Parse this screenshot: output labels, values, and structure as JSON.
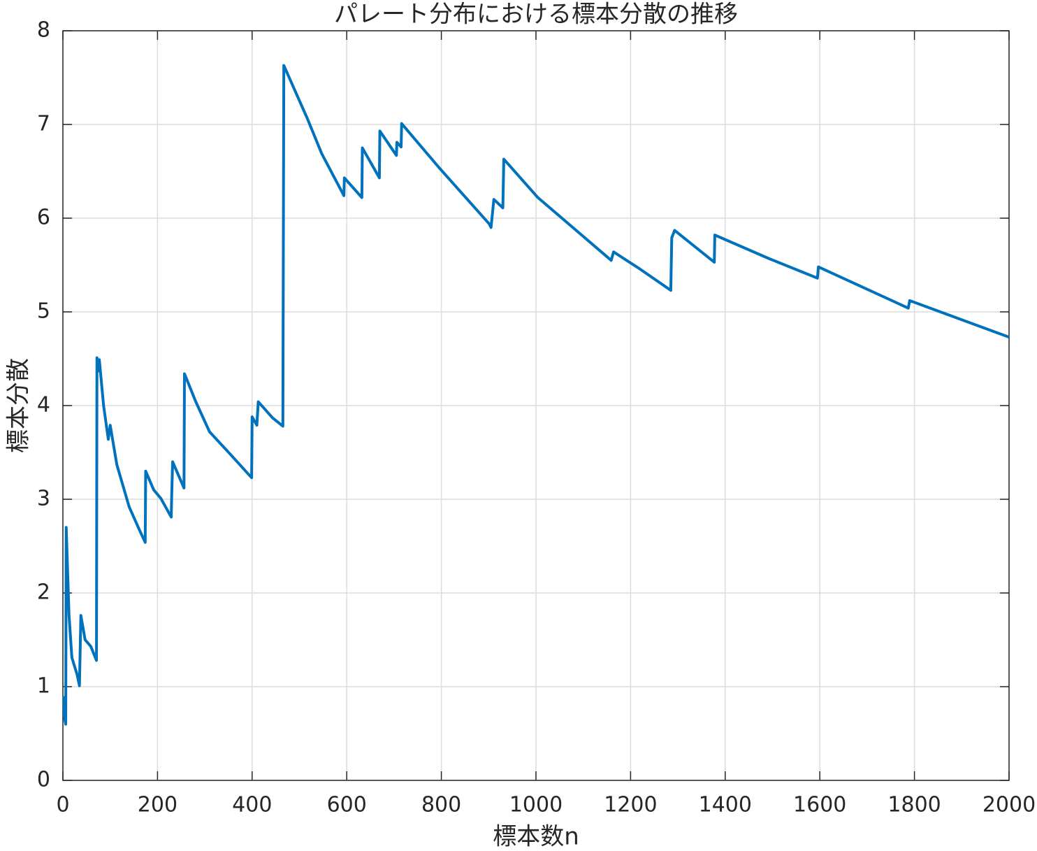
{
  "chart_data": {
    "type": "line",
    "title": "パレート分布における標本分散の推移",
    "x_label": "標本数n",
    "y_label": "標本分散",
    "x": [
      2,
      3,
      6,
      7,
      13,
      19,
      30,
      35,
      38,
      47,
      59,
      71,
      72,
      76,
      77,
      86,
      96,
      100,
      114,
      140,
      162,
      174,
      175,
      192,
      207,
      229,
      230,
      232,
      256,
      257,
      281,
      310,
      354,
      399,
      400,
      410,
      413,
      443,
      465,
      467,
      517,
      547,
      594,
      595,
      632,
      633,
      669,
      670,
      705,
      706,
      715,
      716,
      795,
      901,
      905,
      911,
      930,
      932,
      1004,
      1078,
      1159,
      1164,
      1219,
      1285,
      1287,
      1293,
      1377,
      1378,
      1492,
      1595,
      1597,
      1787,
      1790,
      2000
    ],
    "values": [
      0.9,
      0.68,
      0.6,
      2.7,
      1.76,
      1.31,
      1.13,
      1.01,
      1.76,
      1.5,
      1.43,
      1.28,
      4.51,
      4.37,
      4.49,
      4.0,
      3.64,
      3.79,
      3.37,
      2.92,
      2.67,
      2.54,
      3.3,
      3.1,
      3.01,
      2.81,
      3.04,
      3.4,
      3.12,
      4.34,
      4.04,
      3.72,
      3.48,
      3.23,
      3.88,
      3.79,
      4.04,
      3.87,
      3.78,
      7.63,
      7.06,
      6.69,
      6.24,
      6.43,
      6.22,
      6.75,
      6.43,
      6.93,
      6.67,
      6.81,
      6.76,
      7.01,
      6.54,
      5.94,
      5.9,
      6.2,
      6.11,
      6.63,
      6.22,
      5.9,
      5.55,
      5.64,
      5.46,
      5.23,
      5.79,
      5.87,
      5.53,
      5.82,
      5.57,
      5.36,
      5.48,
      5.04,
      5.12,
      4.73
    ],
    "color": "#0072bd",
    "xlim": [
      0,
      2000
    ],
    "xticks": [
      0,
      200,
      400,
      600,
      800,
      1000,
      1200,
      1400,
      1600,
      1800,
      2000
    ],
    "ylim": [
      0,
      8
    ],
    "yticks": [
      0,
      1,
      2,
      3,
      4,
      5,
      6,
      7,
      8
    ],
    "grid": true
  }
}
